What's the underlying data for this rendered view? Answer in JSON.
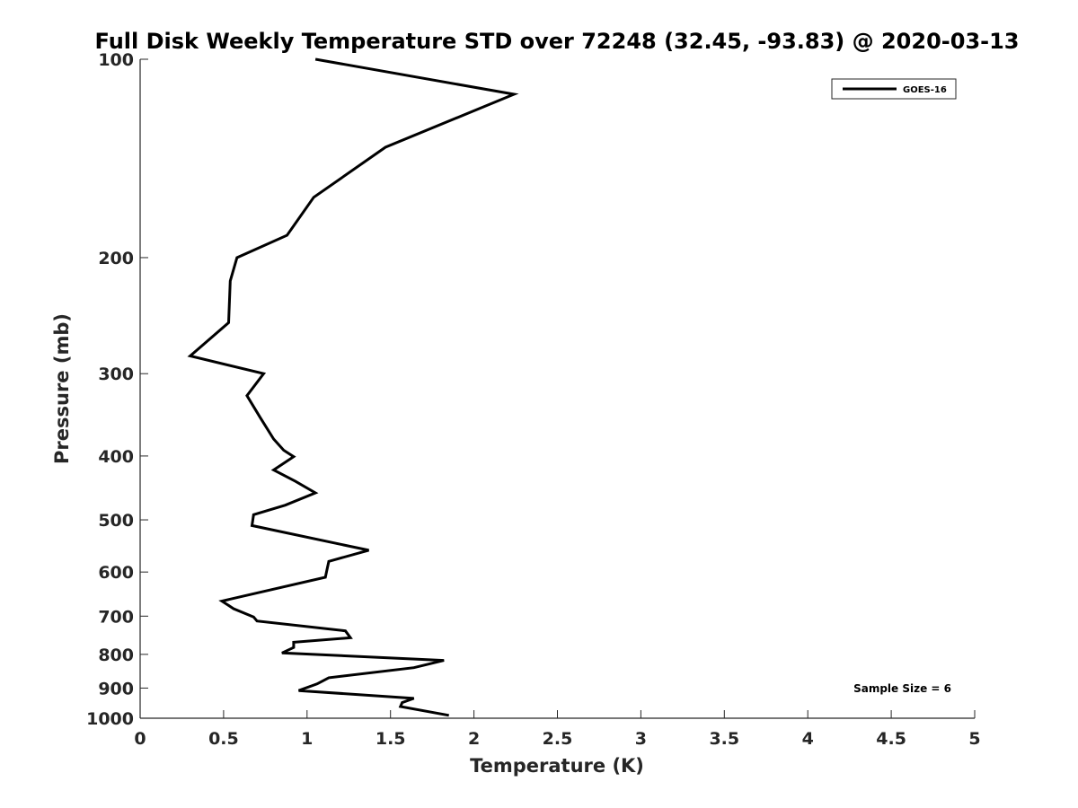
{
  "chart_data": {
    "type": "line",
    "title": "Full Disk Weekly Temperature STD over 72248 (32.45, -93.83) @ 2020-03-13",
    "xlabel": "Temperature (K)",
    "ylabel": "Pressure (mb)",
    "xlim": [
      0,
      5
    ],
    "ylim": [
      100,
      1000
    ],
    "y_scale": "log",
    "y_reversed": true,
    "x_ticks": [
      "0",
      "0.5",
      "1",
      "1.5",
      "2",
      "2.5",
      "3",
      "3.5",
      "4",
      "4.5",
      "5"
    ],
    "x_tick_values": [
      0,
      0.5,
      1,
      1.5,
      2,
      2.5,
      3,
      3.5,
      4,
      4.5,
      5
    ],
    "y_ticks": [
      "100",
      "200",
      "300",
      "400",
      "500",
      "600",
      "700",
      "800",
      "900",
      "1000"
    ],
    "y_tick_values": [
      100,
      200,
      300,
      400,
      500,
      600,
      700,
      800,
      900,
      1000
    ],
    "grid": false,
    "legend_position": "top-right",
    "series": [
      {
        "name": "GOES-16",
        "color": "#000000",
        "points": [
          [
            1.05,
            100
          ],
          [
            2.24,
            113
          ],
          [
            1.47,
            136
          ],
          [
            1.04,
            162
          ],
          [
            0.88,
            185
          ],
          [
            0.58,
            200
          ],
          [
            0.54,
            217
          ],
          [
            0.53,
            251
          ],
          [
            0.3,
            282
          ],
          [
            0.74,
            300
          ],
          [
            0.64,
            324
          ],
          [
            0.72,
            350
          ],
          [
            0.8,
            377
          ],
          [
            0.86,
            392
          ],
          [
            0.92,
            401
          ],
          [
            0.8,
            420
          ],
          [
            0.93,
            437
          ],
          [
            1.05,
            455
          ],
          [
            0.87,
            475
          ],
          [
            0.68,
            491
          ],
          [
            0.67,
            510
          ],
          [
            1.37,
            556
          ],
          [
            1.13,
            578
          ],
          [
            1.12,
            594
          ],
          [
            1.11,
            611
          ],
          [
            0.49,
            664
          ],
          [
            0.56,
            682
          ],
          [
            0.68,
            702
          ],
          [
            0.7,
            712
          ],
          [
            1.23,
            737
          ],
          [
            1.26,
            755
          ],
          [
            0.92,
            767
          ],
          [
            0.92,
            781
          ],
          [
            0.85,
            796
          ],
          [
            1.82,
            817
          ],
          [
            1.64,
            838
          ],
          [
            1.13,
            868
          ],
          [
            1.06,
            887
          ],
          [
            0.95,
            908
          ],
          [
            1.64,
            933
          ],
          [
            1.57,
            947
          ],
          [
            1.56,
            960
          ],
          [
            1.85,
            990
          ]
        ]
      }
    ],
    "annotations": [
      "Sample Size = 6"
    ]
  }
}
